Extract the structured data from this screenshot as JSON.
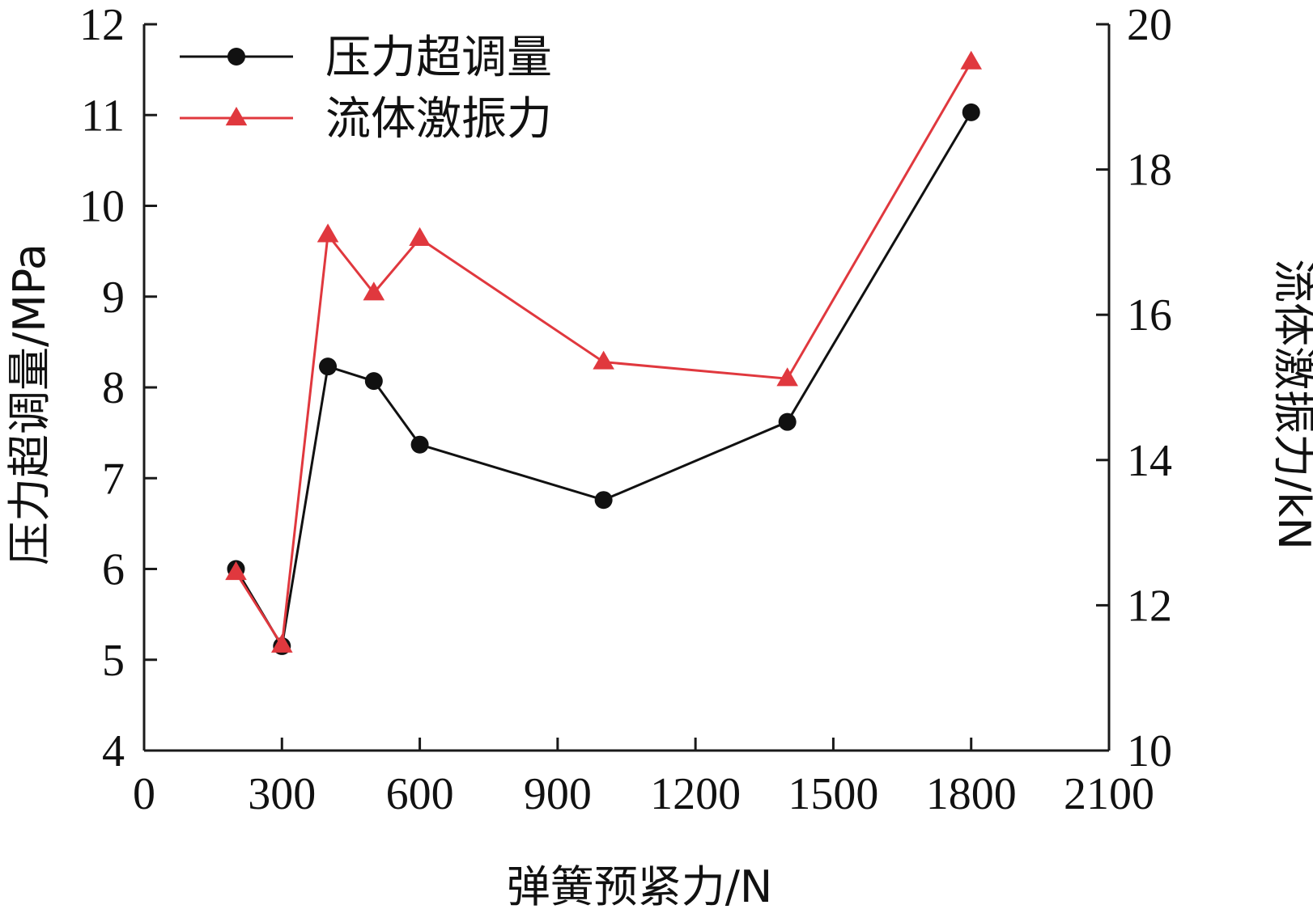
{
  "chart_data": {
    "type": "line",
    "title": "",
    "xlabel": "弹簧预紧力/N",
    "ylabel_left": "压力超调量/MPa",
    "ylabel_right": "流体激振力/kN",
    "xlim": [
      0,
      2100
    ],
    "ylim_left": [
      4,
      12
    ],
    "ylim_right": [
      10,
      20
    ],
    "x_ticks": [
      "0",
      "300",
      "600",
      "900",
      "1200",
      "1500",
      "1800",
      "2100"
    ],
    "y_left_ticks": [
      "4",
      "5",
      "6",
      "7",
      "8",
      "9",
      "10",
      "11",
      "12"
    ],
    "y_right_ticks": [
      "10",
      "12",
      "14",
      "16",
      "18",
      "20"
    ],
    "grid": false,
    "legend_position": "top-left",
    "series": [
      {
        "name": "压力超调量",
        "axis": "left",
        "color": "#111111",
        "marker": "circle",
        "x": [
          200,
          300,
          400,
          500,
          600,
          1000,
          1400,
          1800
        ],
        "y": [
          6.0,
          5.15,
          8.23,
          8.07,
          7.37,
          6.76,
          7.62,
          11.03
        ]
      },
      {
        "name": "流体激振力",
        "axis": "right",
        "color": "#e0383e",
        "marker": "triangle",
        "x": [
          200,
          300,
          400,
          500,
          600,
          1000,
          1400,
          1800
        ],
        "y": [
          12.45,
          11.45,
          17.1,
          16.3,
          17.05,
          15.35,
          15.12,
          19.48
        ]
      }
    ]
  }
}
